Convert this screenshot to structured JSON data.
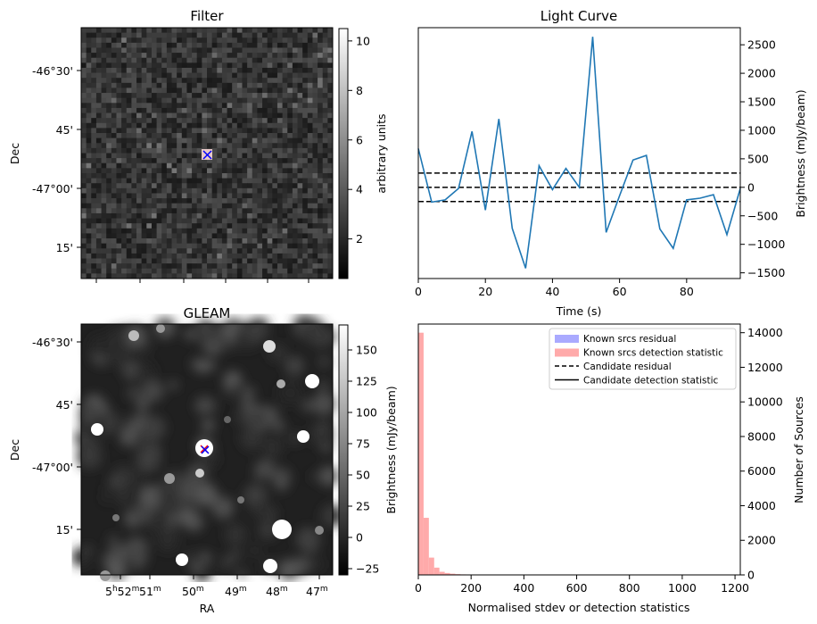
{
  "panels": {
    "filter": {
      "title": "Filter",
      "ylabel": "Dec",
      "colorbar_label": "arbitrary units",
      "colorbar_ticks": [
        "2",
        "4",
        "6",
        "8",
        "10"
      ],
      "colorbar_range": [
        0.4,
        10.5
      ],
      "dec_ticks": [
        "-46°30'",
        "45'",
        "-47°00'",
        "15'"
      ]
    },
    "gleam": {
      "title": "GLEAM",
      "ylabel": "Dec",
      "xlabel": "RA",
      "colorbar_label": "Brightness (mJy/beam)",
      "colorbar_ticks": [
        "−25",
        "0",
        "25",
        "50",
        "75",
        "100",
        "125",
        "150"
      ],
      "colorbar_range": [
        -30,
        170
      ],
      "dec_ticks": [
        "-46°30'",
        "45'",
        "-47°00'",
        "15'"
      ],
      "ra_ticks": [
        {
          "h": "5",
          "hs": "h",
          "m": "52",
          "ms": "m"
        },
        {
          "h": "",
          "hs": "",
          "m": "51",
          "ms": "m"
        },
        {
          "h": "",
          "hs": "",
          "m": "50",
          "ms": "m"
        },
        {
          "h": "",
          "hs": "",
          "m": "49",
          "ms": "m"
        },
        {
          "h": "",
          "hs": "",
          "m": "48",
          "ms": "m"
        },
        {
          "h": "",
          "hs": "",
          "m": "47",
          "ms": "m"
        }
      ],
      "marker_colors": {
        "source": "#0000ff",
        "candidate": "#ff0000"
      }
    }
  },
  "chart_data": [
    {
      "type": "line",
      "title": "Light Curve",
      "xlabel": "Time (s)",
      "ylabel": "Brightness (mJy/beam)",
      "xlim": [
        0,
        96
      ],
      "ylim": [
        -1600,
        2800
      ],
      "xticks": [
        0,
        20,
        40,
        60,
        80
      ],
      "yticks": [
        -1500,
        -1000,
        -500,
        0,
        500,
        1000,
        1500,
        2000,
        2500
      ],
      "line_color": "#1f77b4",
      "x": [
        0,
        4,
        8,
        12,
        16,
        20,
        24,
        28,
        32,
        36,
        40,
        44,
        48,
        52,
        56,
        60,
        64,
        68,
        72,
        76,
        80,
        84,
        88,
        92,
        96
      ],
      "y": [
        680,
        -260,
        -220,
        -20,
        980,
        -400,
        1200,
        -720,
        -1420,
        380,
        -40,
        330,
        0,
        2640,
        -790,
        -150,
        480,
        560,
        -730,
        -1070,
        -220,
        -190,
        -130,
        -830,
        -20
      ],
      "hlines": [
        250,
        0,
        -250
      ],
      "hline_style": "dashed"
    },
    {
      "type": "histogram",
      "xlabel": "Normalised stdev or detection statistics",
      "ylabel": "Number of Sources",
      "xlim": [
        0,
        1220
      ],
      "ylim": [
        0,
        14500
      ],
      "xticks": [
        0,
        200,
        400,
        600,
        800,
        1000,
        1200
      ],
      "yticks": [
        0,
        2000,
        4000,
        6000,
        8000,
        10000,
        12000,
        14000
      ],
      "bin_width": 20,
      "series": [
        {
          "name": "Known srcs residual",
          "color": "#aaaaff",
          "values": []
        },
        {
          "name": "Known srcs detection statistic",
          "color": "#ffaaaa",
          "values": [
            14000,
            3300,
            1000,
            420,
            180,
            110,
            70,
            45,
            30,
            25,
            20,
            18,
            15,
            13,
            12,
            10,
            9,
            8,
            8,
            7,
            6,
            6,
            5,
            5,
            4,
            4,
            4,
            3,
            3,
            3,
            3,
            2,
            2,
            2,
            2,
            2,
            2,
            2,
            2,
            2,
            2,
            1,
            1,
            1,
            1,
            1,
            1,
            1,
            1,
            1,
            1,
            1,
            1,
            1,
            1,
            1,
            1,
            1,
            1,
            1
          ]
        }
      ],
      "legend": [
        {
          "label": "Known srcs residual",
          "style": "patch",
          "color": "#aaaaff"
        },
        {
          "label": "Known srcs detection statistic",
          "style": "patch",
          "color": "#ffaaaa"
        },
        {
          "label": "Candidate residual",
          "style": "dashed",
          "color": "#000000"
        },
        {
          "label": "Candidate detection statistic",
          "style": "solid",
          "color": "#000000"
        }
      ],
      "legend_position": "top-right"
    }
  ]
}
